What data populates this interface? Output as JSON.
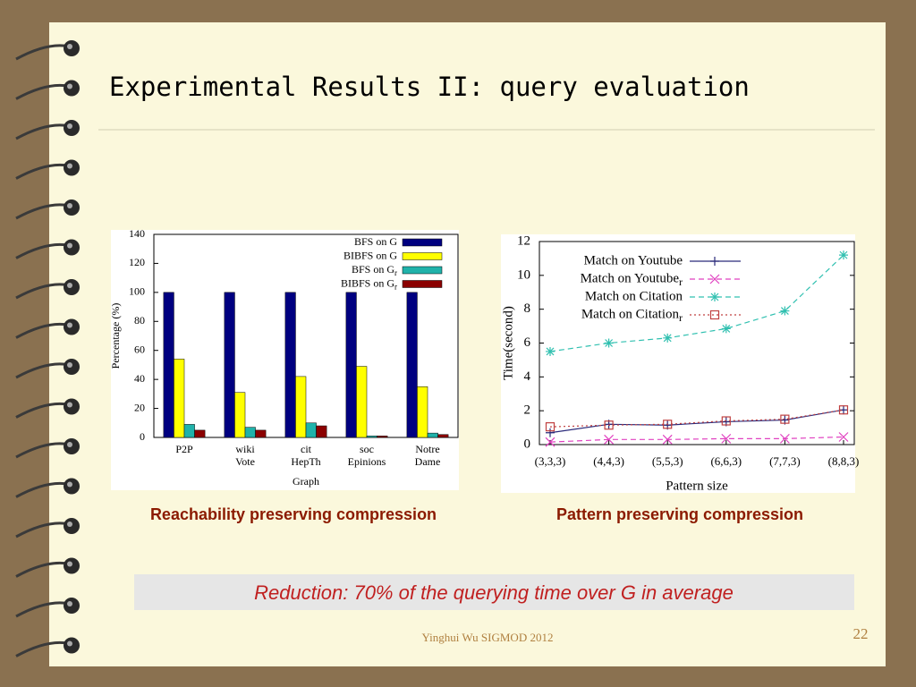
{
  "title": "Experimental Results II: query evaluation",
  "chart_data": [
    {
      "type": "bar",
      "caption": "Reachability preserving compression",
      "categories": [
        [
          "P2P"
        ],
        [
          "wiki",
          "Vote"
        ],
        [
          "cit",
          "HepTh"
        ],
        [
          "soc",
          "Epinions"
        ],
        [
          "Notre",
          "Dame"
        ]
      ],
      "series": [
        {
          "name": "BFS on G",
          "color": "#000080",
          "values": [
            100,
            100,
            100,
            100,
            100
          ]
        },
        {
          "name": "BIBFS on G",
          "color": "#ffff00",
          "values": [
            54,
            31,
            42,
            49,
            35
          ]
        },
        {
          "name": "BFS on G",
          "sub": "r",
          "color": "#20b2aa",
          "values": [
            9,
            7,
            10,
            1,
            3
          ]
        },
        {
          "name": "BIBFS on G",
          "sub": "r",
          "color": "#8b0000",
          "values": [
            5,
            5,
            8,
            1,
            2
          ]
        }
      ],
      "ylabel": "Percentage (%)",
      "xlabel": "Graph",
      "ylim": [
        0,
        140
      ],
      "yticks": [
        0,
        20,
        40,
        60,
        80,
        100,
        120,
        140
      ],
      "legend": "upper right"
    },
    {
      "type": "line",
      "caption": "Pattern preserving compression",
      "categories": [
        "(3,3,3)",
        "(4,4,3)",
        "(5,5,3)",
        "(6,6,3)",
        "(7,7,3)",
        "(8,8,3)"
      ],
      "series": [
        {
          "name": "Match on Youtube",
          "color": "#2a2a7a",
          "marker": "plus",
          "dash": "solid",
          "values": [
            0.7,
            1.2,
            1.15,
            1.35,
            1.45,
            2.05
          ]
        },
        {
          "name": "Match on Youtube",
          "sub": "r",
          "color": "#e040c0",
          "marker": "cross",
          "dash": "dashed",
          "values": [
            0.15,
            0.3,
            0.3,
            0.35,
            0.35,
            0.45
          ]
        },
        {
          "name": "Match on Citation",
          "color": "#30c0b0",
          "marker": "star",
          "dash": "dashed",
          "values": [
            5.5,
            6.0,
            6.3,
            6.85,
            7.9,
            11.2
          ]
        },
        {
          "name": "Match on Citation",
          "sub": "r",
          "color": "#c04040",
          "marker": "square",
          "dash": "dotted",
          "values": [
            1.05,
            1.15,
            1.2,
            1.4,
            1.5,
            2.05
          ]
        }
      ],
      "ylabel": "Time(second)",
      "xlabel": "Pattern size",
      "ylim": [
        0,
        12
      ],
      "yticks": [
        0,
        2,
        4,
        6,
        8,
        10,
        12
      ],
      "legend": "upper left"
    }
  ],
  "note": "Reduction: 70% of the querying time over G in average",
  "footer": "Yinghui Wu SIGMOD 2012",
  "page_number": "22"
}
